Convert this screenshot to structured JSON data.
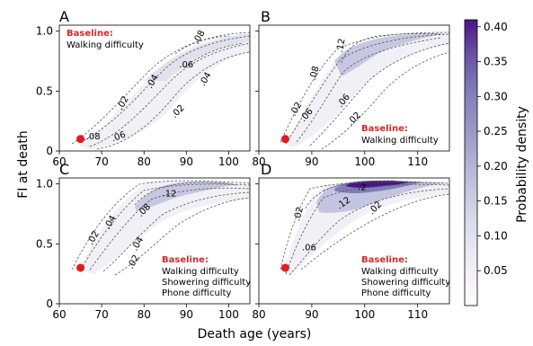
{
  "chart_data": {
    "type": "heatmap",
    "shared": {
      "ylabel": "FI at death",
      "xlabel": "Death age (years)",
      "ylim": [
        0,
        1.05
      ],
      "yticks": [
        "0",
        "0.5",
        "1.0"
      ],
      "colorbar": {
        "label": "Probability density",
        "range": [
          0,
          0.41
        ],
        "ticks": [
          "0.05",
          "0.10",
          "0.15",
          "0.20",
          "0.25",
          "0.30",
          "0.35",
          "0.40"
        ],
        "tick_values": [
          0.05,
          0.1,
          0.15,
          0.2,
          0.25,
          0.3,
          0.35,
          0.4
        ],
        "colors": [
          "#fcfbfd",
          "#efedf5",
          "#dadaeb",
          "#bcbddc",
          "#9e9ac8",
          "#807dba",
          "#6a51a3",
          "#4a1486"
        ]
      },
      "marker_color": "#e41a1c",
      "baseline_color": "#d62728",
      "contour_color": "#555555"
    },
    "panels": [
      {
        "letter": "A",
        "xlim": [
          60,
          105
        ],
        "xticks": [
          "60",
          "70",
          "80",
          "90",
          "100"
        ],
        "start": {
          "age": 65,
          "fi": 0.1
        },
        "baseline_title": "Baseline:",
        "baseline_items": [
          "Walking difficulty"
        ],
        "baseline_pos": "top-left",
        "contour_labels": [
          {
            "text": ".08",
            "age": 68.0,
            "fi": 0.12,
            "angle": 0
          },
          {
            "text": ".06",
            "age": 74.0,
            "fi": 0.12,
            "angle": -20
          },
          {
            "text": ".02",
            "age": 75.0,
            "fi": 0.4,
            "angle": -60
          },
          {
            "text": ".04",
            "age": 82.0,
            "fi": 0.58,
            "angle": -60
          },
          {
            "text": ".06",
            "age": 90.0,
            "fi": 0.72,
            "angle": 0
          },
          {
            "text": ".08",
            "age": 93.0,
            "fi": 0.95,
            "angle": -60
          },
          {
            "text": ".04",
            "age": 94.5,
            "fi": 0.6,
            "angle": -60
          },
          {
            "text": ".02",
            "age": 88.0,
            "fi": 0.33,
            "angle": -45
          }
        ],
        "density": [
          {
            "age": 74,
            "fi": 0.35,
            "level": 0.015
          },
          {
            "age": 83,
            "fi": 0.62,
            "level": 0.025
          },
          {
            "age": 92,
            "fi": 0.88,
            "level": 0.04
          },
          {
            "age": 97,
            "fi": 0.97,
            "level": 0.06
          }
        ]
      },
      {
        "letter": "B",
        "xlim": [
          80,
          116
        ],
        "xticks": [
          "80",
          "90",
          "100",
          "110"
        ],
        "start": {
          "age": 85,
          "fi": 0.1
        },
        "baseline_title": "Baseline:",
        "baseline_items": [
          "Walking difficulty"
        ],
        "baseline_pos": "bottom-right",
        "contour_labels": [
          {
            "text": ".02",
            "age": 87.0,
            "fi": 0.35,
            "angle": -60
          },
          {
            "text": ".06",
            "age": 89.0,
            "fi": 0.3,
            "angle": -50
          },
          {
            "text": ".08",
            "age": 90.5,
            "fi": 0.65,
            "angle": -75
          },
          {
            "text": ".12",
            "age": 95.5,
            "fi": 0.88,
            "angle": -80
          },
          {
            "text": ".06",
            "age": 96.0,
            "fi": 0.42,
            "angle": -50
          },
          {
            "text": ".02",
            "age": 98.0,
            "fi": 0.27,
            "angle": -45
          }
        ],
        "density": [
          {
            "age": 92,
            "fi": 0.6,
            "level": 0.04
          },
          {
            "age": 97,
            "fi": 0.85,
            "level": 0.08
          },
          {
            "age": 102,
            "fi": 0.93,
            "level": 0.11
          }
        ]
      },
      {
        "letter": "C",
        "xlim": [
          60,
          105
        ],
        "xticks": [
          "60",
          "70",
          "80",
          "90",
          "100"
        ],
        "start": {
          "age": 65,
          "fi": 0.3
        },
        "baseline_title": "Baseline:",
        "baseline_items": [
          "Walking difficulty",
          "Showering difficulty",
          "Phone difficulty"
        ],
        "baseline_pos": "bottom-right",
        "contour_labels": [
          {
            "text": ".02",
            "age": 68.0,
            "fi": 0.55,
            "angle": -60
          },
          {
            "text": ".04",
            "age": 72.0,
            "fi": 0.68,
            "angle": -60
          },
          {
            "text": ".08",
            "age": 80.0,
            "fi": 0.78,
            "angle": -45
          },
          {
            "text": ".12",
            "age": 86.0,
            "fi": 0.92,
            "angle": 0
          },
          {
            "text": ".04",
            "age": 78.5,
            "fi": 0.5,
            "angle": -60
          },
          {
            "text": ".02",
            "age": 77.5,
            "fi": 0.35,
            "angle": -60
          }
        ],
        "density": [
          {
            "age": 78,
            "fi": 0.7,
            "level": 0.04
          },
          {
            "age": 88,
            "fi": 0.9,
            "level": 0.1
          },
          {
            "age": 95,
            "fi": 0.97,
            "level": 0.13
          }
        ]
      },
      {
        "letter": "D",
        "xlim": [
          80,
          116
        ],
        "xticks": [
          "80",
          "90",
          "100",
          "110"
        ],
        "start": {
          "age": 85,
          "fi": 0.3
        },
        "baseline_title": "Baseline:",
        "baseline_items": [
          "Walking difficulty",
          "Showering difficulty",
          "Phone difficulty"
        ],
        "baseline_pos": "bottom-right",
        "contour_labels": [
          {
            "text": ".02",
            "age": 87.5,
            "fi": 0.75,
            "angle": -75
          },
          {
            "text": ".06",
            "age": 89.5,
            "fi": 0.47,
            "angle": 0
          },
          {
            "text": ".12",
            "age": 96.0,
            "fi": 0.84,
            "angle": -35
          },
          {
            "text": ".2",
            "age": 99.5,
            "fi": 0.97,
            "angle": 0
          },
          {
            "text": ".02",
            "age": 102.0,
            "fi": 0.8,
            "angle": -45
          }
        ],
        "density": [
          {
            "age": 93,
            "fi": 0.8,
            "level": 0.08
          },
          {
            "age": 99,
            "fi": 0.95,
            "level": 0.22
          },
          {
            "age": 100,
            "fi": 1.0,
            "level": 0.38
          }
        ]
      }
    ]
  }
}
